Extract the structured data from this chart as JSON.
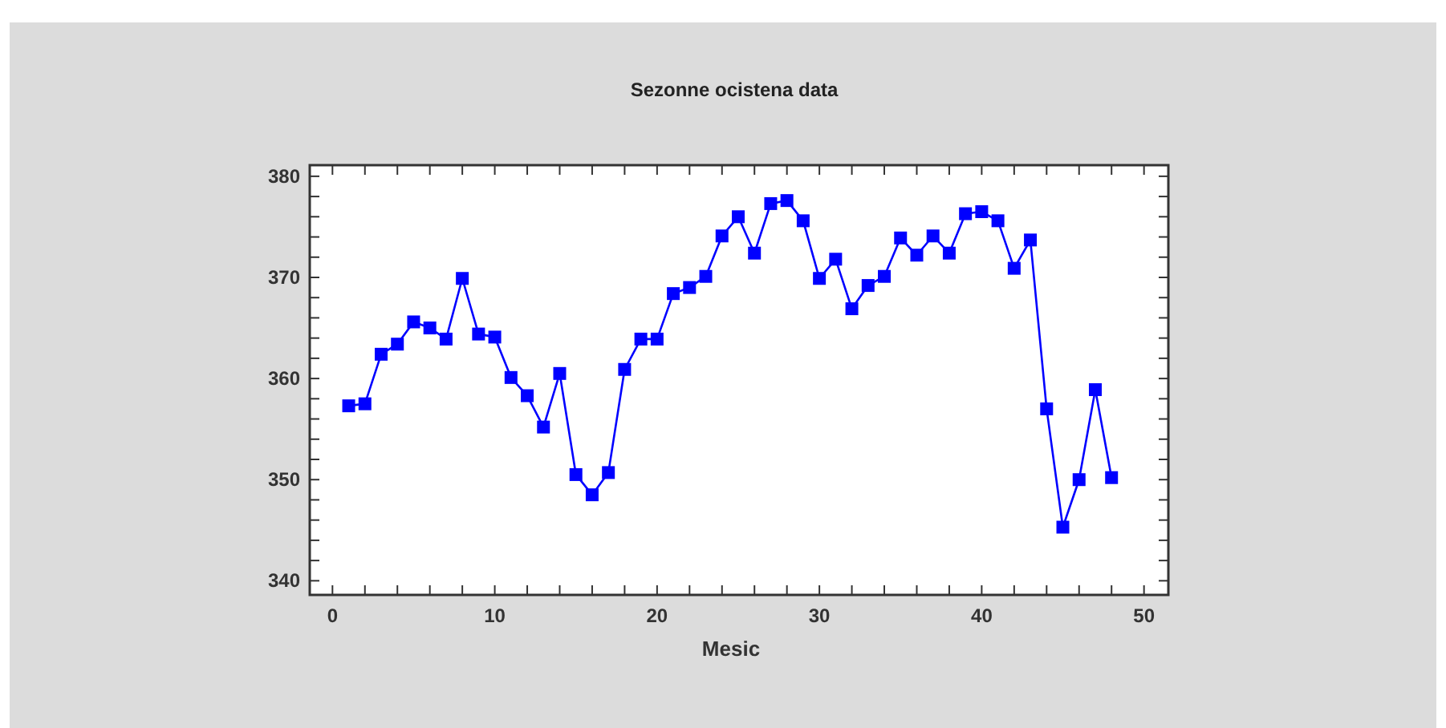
{
  "chart_data": {
    "type": "line",
    "title": "Sezonne ocistena data",
    "xlabel": "Mesic",
    "x": [
      1,
      2,
      3,
      4,
      5,
      6,
      7,
      8,
      9,
      10,
      11,
      12,
      13,
      14,
      15,
      16,
      17,
      18,
      19,
      20,
      21,
      22,
      23,
      24,
      25,
      26,
      27,
      28,
      29,
      30,
      31,
      32,
      33,
      34,
      35,
      36,
      37,
      38,
      39,
      40,
      41,
      42,
      43,
      44,
      45,
      46,
      47,
      48
    ],
    "series": [
      {
        "color": "#0000ff",
        "values": [
          357.3,
          357.5,
          362.4,
          363.4,
          365.6,
          365.0,
          363.9,
          369.9,
          364.4,
          364.1,
          360.1,
          358.3,
          355.2,
          360.5,
          350.5,
          348.5,
          350.7,
          360.9,
          363.9,
          363.9,
          368.4,
          369.0,
          370.1,
          374.1,
          376.0,
          372.4,
          377.3,
          377.6,
          375.6,
          369.9,
          371.8,
          366.9,
          369.2,
          370.1,
          373.9,
          372.2,
          374.1,
          372.4,
          376.3,
          376.5,
          375.6,
          370.9,
          373.7,
          357.0,
          345.3,
          350.0,
          358.9,
          350.2
        ]
      }
    ],
    "xlim": [
      -1.4,
      51.5
    ],
    "ylim": [
      338.6,
      381.1
    ],
    "xticks": [
      0,
      {
        "value": 2,
        "label": null
      },
      {
        "value": 4,
        "label": null
      },
      {
        "value": 6,
        "label": null
      },
      {
        "value": 8,
        "label": null
      },
      10,
      {
        "value": 12,
        "label": null
      },
      {
        "value": 14,
        "label": null
      },
      {
        "value": 16,
        "label": null
      },
      {
        "value": 18,
        "label": null
      },
      20,
      {
        "value": 22,
        "label": null
      },
      {
        "value": 24,
        "label": null
      },
      {
        "value": 26,
        "label": null
      },
      {
        "value": 28,
        "label": null
      },
      30,
      {
        "value": 32,
        "label": null
      },
      {
        "value": 34,
        "label": null
      },
      {
        "value": 36,
        "label": null
      },
      {
        "value": 38,
        "label": null
      },
      40,
      {
        "value": 42,
        "label": null
      },
      {
        "value": 44,
        "label": null
      },
      {
        "value": 46,
        "label": null
      },
      {
        "value": 48,
        "label": null
      },
      50
    ],
    "yticks": [
      340,
      {
        "value": 342,
        "label": null
      },
      {
        "value": 344,
        "label": null
      },
      {
        "value": 346,
        "label": null
      },
      {
        "value": 348,
        "label": null
      },
      350,
      {
        "value": 352,
        "label": null
      },
      {
        "value": 354,
        "label": null
      },
      {
        "value": 356,
        "label": null
      },
      {
        "value": 358,
        "label": null
      },
      360,
      {
        "value": 362,
        "label": null
      },
      {
        "value": 364,
        "label": null
      },
      {
        "value": 366,
        "label": null
      },
      {
        "value": 368,
        "label": null
      },
      370,
      {
        "value": 372,
        "label": null
      },
      {
        "value": 374,
        "label": null
      },
      {
        "value": 376,
        "label": null
      },
      {
        "value": 378,
        "label": null
      },
      380
    ],
    "marker": "square",
    "line_style": "solid",
    "grid": false
  }
}
